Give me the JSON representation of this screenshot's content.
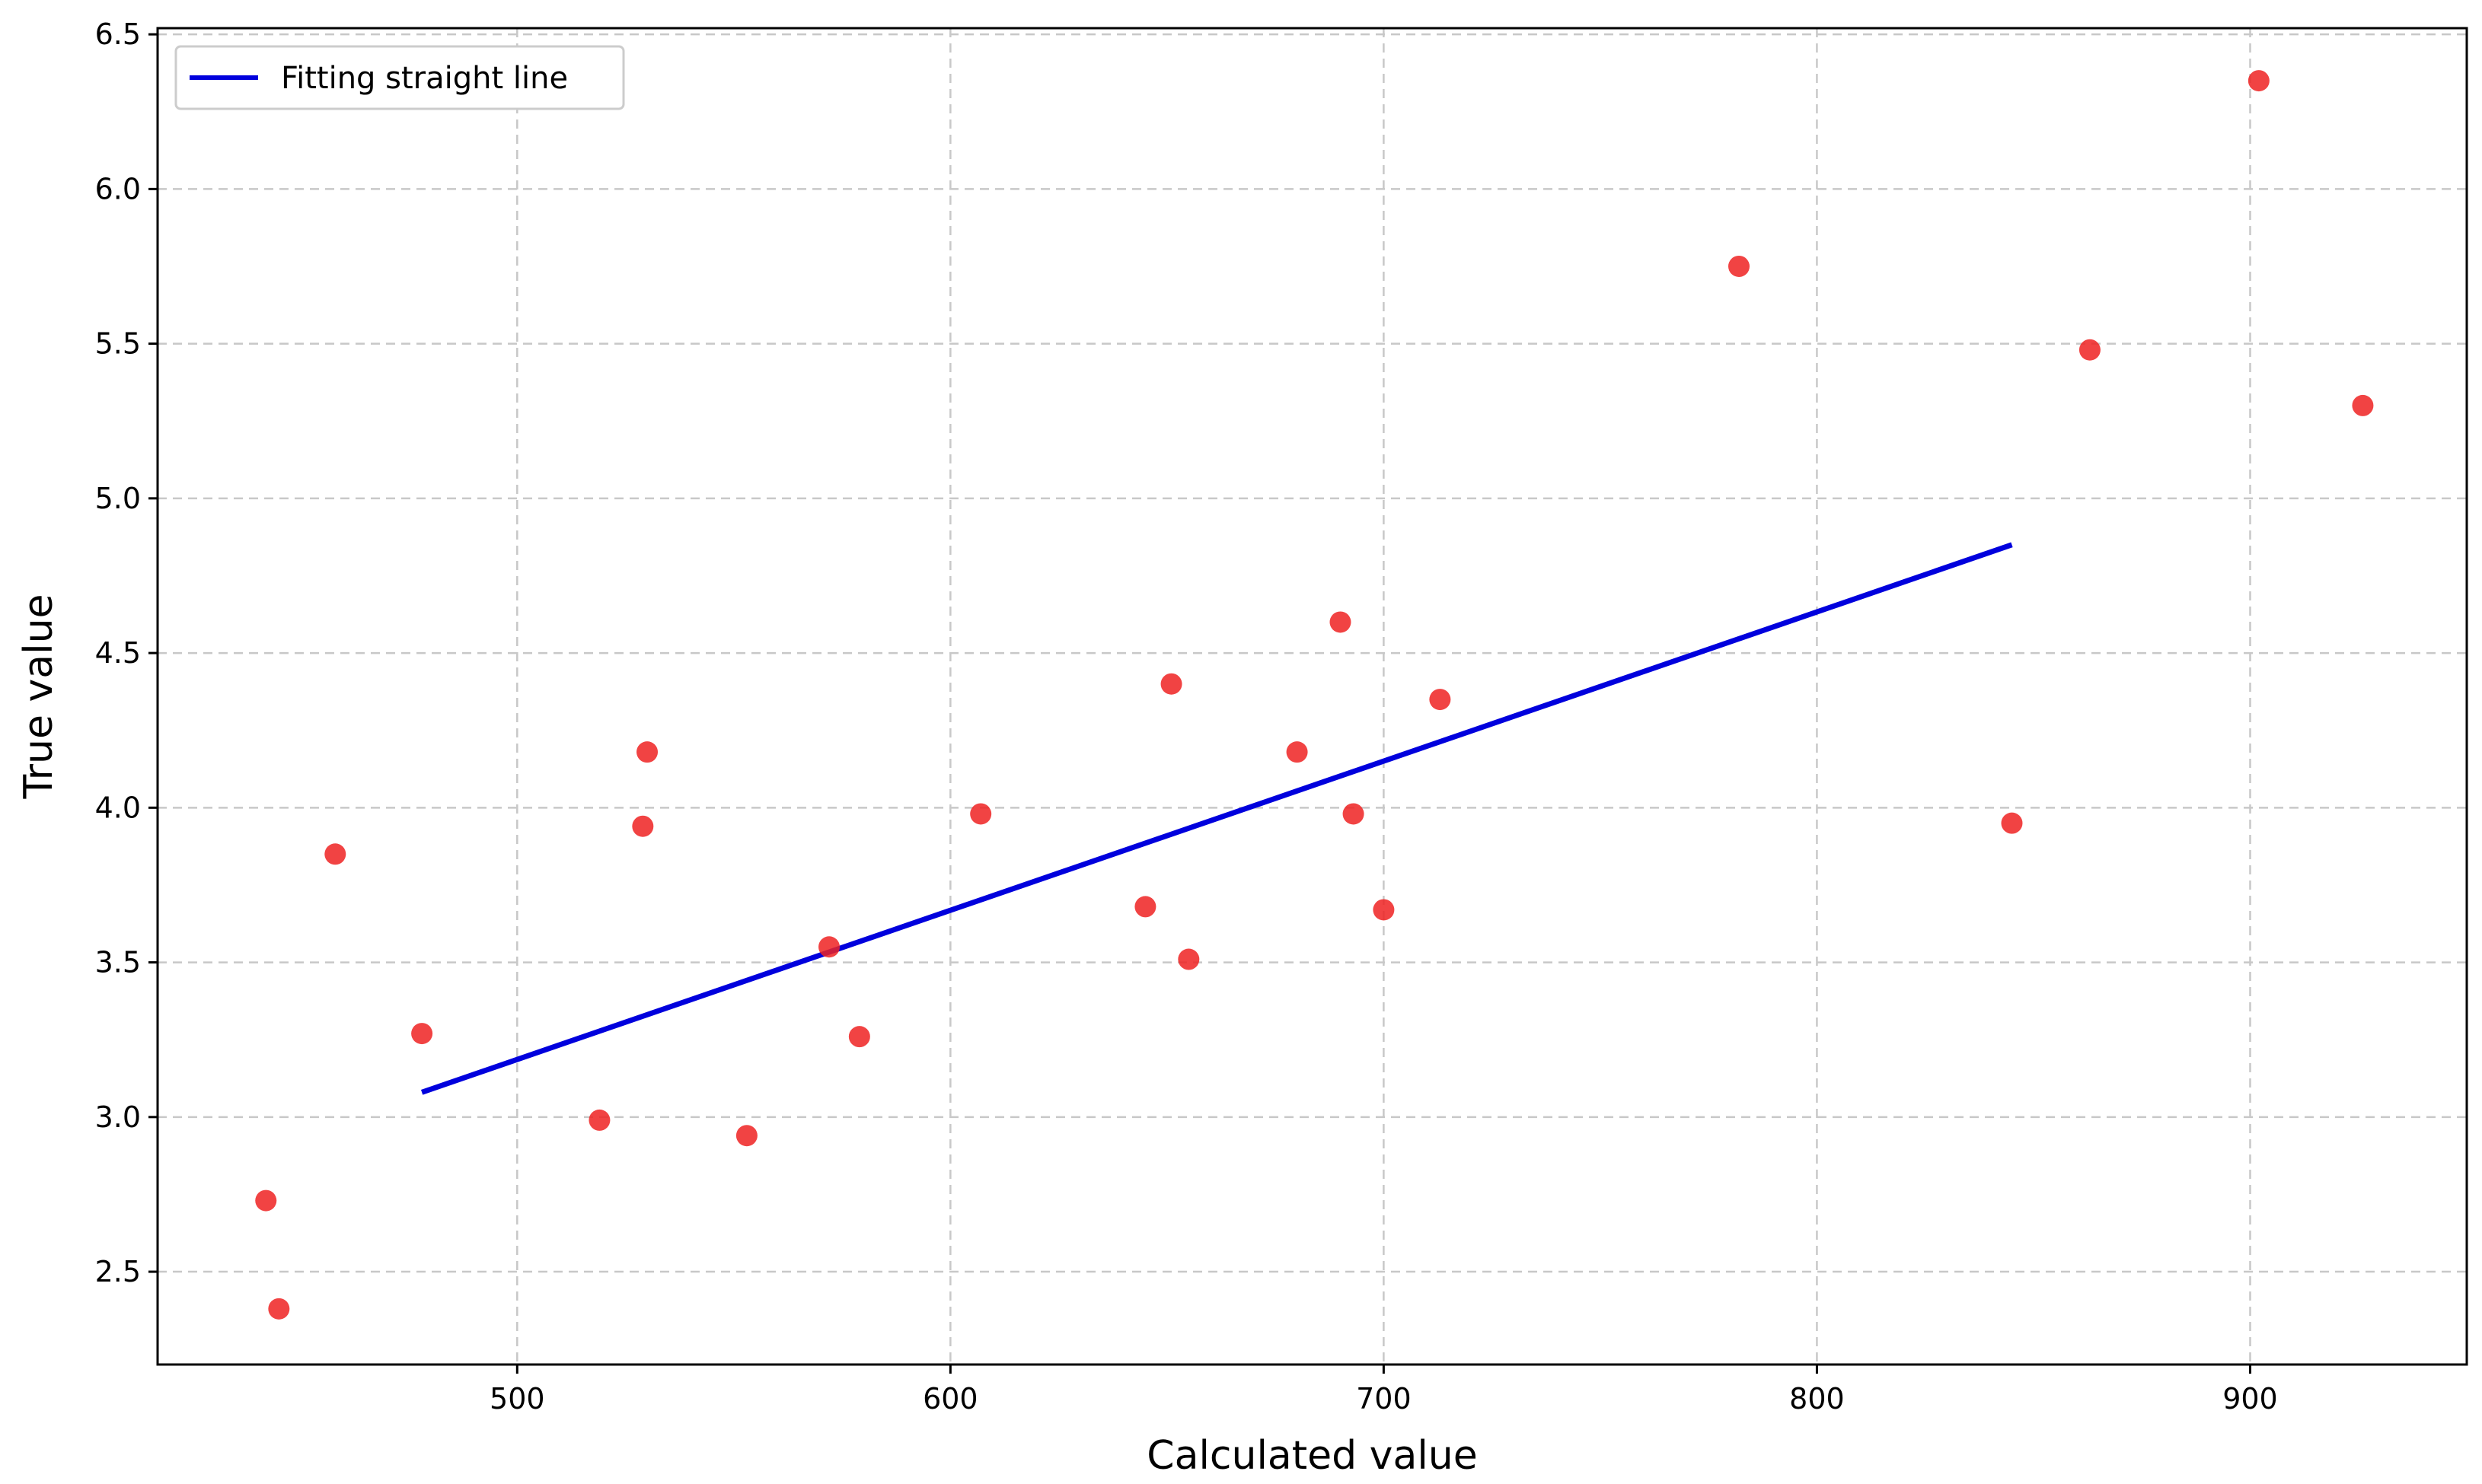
{
  "chart_data": {
    "type": "scatter",
    "title": "",
    "xlabel": "Calculated value",
    "ylabel": "True value",
    "xlim": [
      417,
      950
    ],
    "ylim": [
      2.2,
      6.52
    ],
    "xticks": [
      500,
      600,
      700,
      800,
      900
    ],
    "yticks": [
      2.5,
      3.0,
      3.5,
      4.0,
      4.5,
      5.0,
      5.5,
      6.0,
      6.5
    ],
    "xtick_labels": [
      "500",
      "600",
      "700",
      "800",
      "900"
    ],
    "ytick_labels": [
      "2.5",
      "3.0",
      "3.5",
      "4.0",
      "4.5",
      "5.0",
      "5.5",
      "6.0",
      "6.5"
    ],
    "grid": true,
    "legend_position": "top-left",
    "series": [
      {
        "kind": "points",
        "color": "#ee2222",
        "points": [
          {
            "x": 442,
            "y": 2.73
          },
          {
            "x": 445,
            "y": 2.38
          },
          {
            "x": 458,
            "y": 3.85
          },
          {
            "x": 478,
            "y": 3.27
          },
          {
            "x": 519,
            "y": 2.99
          },
          {
            "x": 529,
            "y": 3.94
          },
          {
            "x": 530,
            "y": 4.18
          },
          {
            "x": 553,
            "y": 2.94
          },
          {
            "x": 572,
            "y": 3.55
          },
          {
            "x": 579,
            "y": 3.26
          },
          {
            "x": 607,
            "y": 3.98
          },
          {
            "x": 645,
            "y": 3.68
          },
          {
            "x": 651,
            "y": 4.4
          },
          {
            "x": 655,
            "y": 3.51
          },
          {
            "x": 680,
            "y": 4.18
          },
          {
            "x": 690,
            "y": 4.6
          },
          {
            "x": 693,
            "y": 3.98
          },
          {
            "x": 700,
            "y": 3.67
          },
          {
            "x": 713,
            "y": 4.35
          },
          {
            "x": 782,
            "y": 5.75
          },
          {
            "x": 845,
            "y": 3.95
          },
          {
            "x": 863,
            "y": 5.48
          },
          {
            "x": 902,
            "y": 6.35
          },
          {
            "x": 926,
            "y": 5.3
          }
        ]
      },
      {
        "kind": "line",
        "name": "Fitting straight line",
        "color": "#0000dd",
        "x": [
          478,
          845
        ],
        "y": [
          3.08,
          4.85
        ]
      }
    ]
  }
}
